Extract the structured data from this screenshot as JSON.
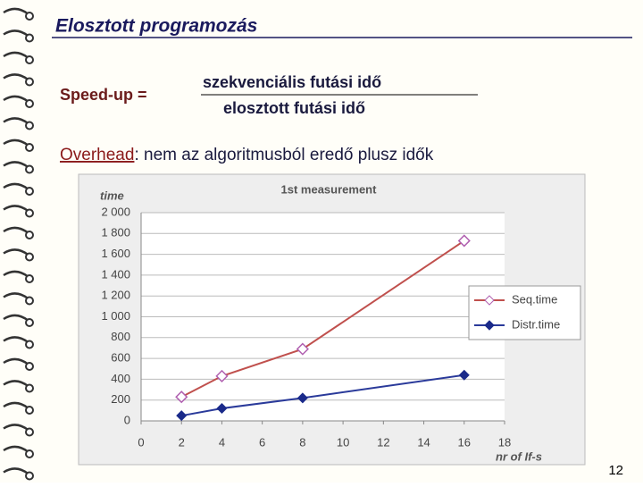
{
  "slide": {
    "title": "Elosztott programozás",
    "speedup_label": "Speed-up =",
    "numerator": "szekvenciális futási idő",
    "denominator": "elosztott futási idő",
    "overhead_term": "Overhead",
    "overhead_text": ": nem az algoritmusból eredő plusz idők",
    "page_number": "12"
  },
  "chart_data": {
    "type": "line",
    "title": "1st measurement",
    "y_label": "time",
    "x_label": "nr of If-s",
    "x": [
      2,
      4,
      8,
      16
    ],
    "series": [
      {
        "name": "Seq.time",
        "color": "#c0504d",
        "marker_color": "#b060b0",
        "values": [
          230,
          430,
          690,
          1730
        ]
      },
      {
        "name": "Distr.time",
        "color": "#2a3a9a",
        "marker_color": "#1a2a8a",
        "values": [
          50,
          120,
          220,
          440
        ]
      }
    ],
    "xlim": [
      0,
      18
    ],
    "xticks": [
      0,
      2,
      4,
      6,
      8,
      10,
      12,
      14,
      16,
      18
    ],
    "ylim": [
      0,
      2000
    ],
    "yticks": [
      0,
      200,
      400,
      600,
      800,
      {
        "value": 1000,
        "label": "1 000"
      },
      {
        "value": 1200,
        "label": "1 200"
      },
      {
        "value": 1400,
        "label": "1 400"
      },
      {
        "value": 1600,
        "label": "1 600"
      },
      {
        "value": 1800,
        "label": "1 800"
      },
      {
        "value": 2000,
        "label": "2 000"
      }
    ],
    "grid": true,
    "legend": "right"
  }
}
